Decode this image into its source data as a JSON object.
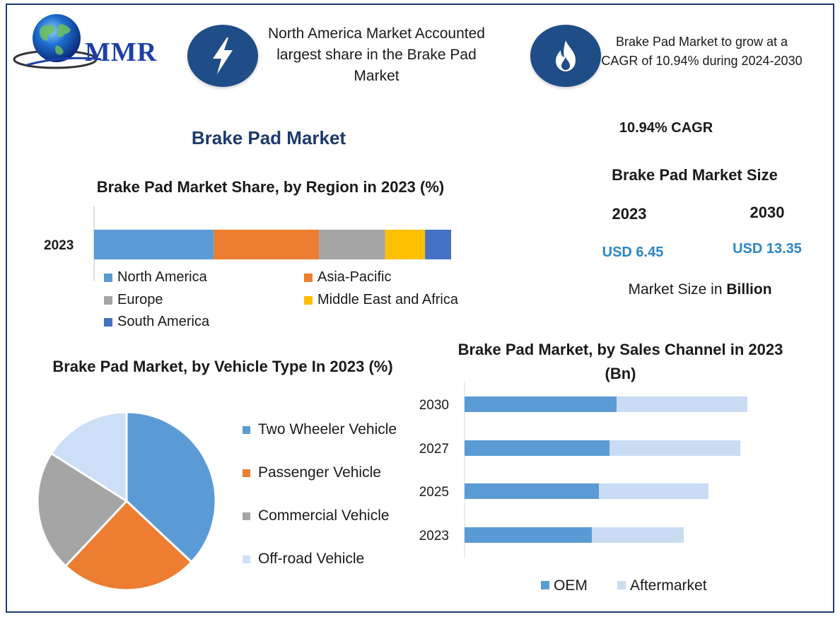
{
  "logo": {
    "text": "MMR"
  },
  "header": {
    "info_left": "North America Market Accounted largest share in the Brake Pad Market",
    "info_right": "Brake Pad Market to grow at a CAGR of 10.94% during 2024-2030",
    "bolt_icon": "lightning-bolt-icon",
    "flame_icon": "flame-icon",
    "icon_bg_color": "#1f4d88"
  },
  "main_title": "Brake Pad Market",
  "stats": {
    "cagr_text": "10.94% CAGR",
    "size_title": "Brake Pad Market Size",
    "year_a": "2023",
    "year_b": "2030",
    "value_a": "USD 6.45",
    "value_b": "USD 13.35",
    "unit_prefix": "Market Size in ",
    "unit_bold": "Billion"
  },
  "chart_data": [
    {
      "type": "bar",
      "orientation": "horizontal-stacked",
      "title": "Brake Pad Market Share, by Region in 2023 (%)",
      "categories": [
        "2023"
      ],
      "series": [
        {
          "name": "North America",
          "values": [
            33.5
          ],
          "color": "#5b9bd5"
        },
        {
          "name": "Asia-Pacific",
          "values": [
            29.5
          ],
          "color": "#ed7d31"
        },
        {
          "name": "Europe",
          "values": [
            18.5
          ],
          "color": "#a5a5a5"
        },
        {
          "name": "Middle East and Africa",
          "values": [
            11.2
          ],
          "color": "#ffc000"
        },
        {
          "name": "South America",
          "values": [
            7.3
          ],
          "color": "#4472c4"
        }
      ],
      "xlim": [
        0,
        100
      ],
      "legend": "bottom",
      "grid": false
    },
    {
      "type": "pie",
      "title": "Brake Pad Market, by Vehicle Type In 2023 (%)",
      "categories": [
        "Two Wheeler Vehicle",
        "Passenger Vehicle",
        "Commercial Vehicle",
        "Off-road Vehicle"
      ],
      "values": [
        37,
        25,
        22,
        16
      ],
      "colors": [
        "#5b9bd5",
        "#ed7d31",
        "#a5a5a5",
        "#cddff7"
      ],
      "legend": "right"
    },
    {
      "type": "bar",
      "orientation": "horizontal-stacked",
      "title": "Brake Pad Market, by Sales Channel  in 2023 (Bn)",
      "categories": [
        "2023",
        "2025",
        "2027",
        "2030"
      ],
      "series": [
        {
          "name": "OEM",
          "values": [
            3.6,
            3.8,
            4.1,
            4.3
          ],
          "color": "#5b9bd5"
        },
        {
          "name": "Aftermarket",
          "values": [
            2.6,
            3.1,
            3.7,
            3.7
          ],
          "color": "#c9dcf3"
        }
      ],
      "legend": "bottom",
      "grid": false
    }
  ]
}
